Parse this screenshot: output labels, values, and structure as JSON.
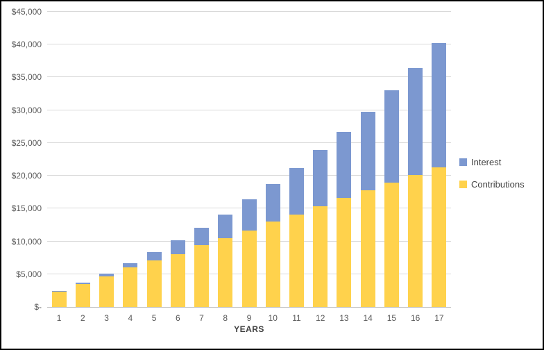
{
  "chart_data": {
    "type": "bar",
    "stacked": true,
    "title": "",
    "xlabel": "YEARS",
    "ylabel": "",
    "categories": [
      "1",
      "2",
      "3",
      "4",
      "5",
      "6",
      "7",
      "8",
      "9",
      "10",
      "11",
      "12",
      "13",
      "14",
      "15",
      "16",
      "17"
    ],
    "series": [
      {
        "name": "Contributions",
        "color": "#ffd24c",
        "values": [
          2300,
          3500,
          4700,
          6000,
          7100,
          8100,
          9400,
          10500,
          11700,
          13000,
          14100,
          15400,
          16600,
          17800,
          19000,
          20100,
          21300
        ]
      },
      {
        "name": "Interest",
        "color": "#7c98d0",
        "values": [
          100,
          200,
          400,
          700,
          1300,
          2100,
          2700,
          3600,
          4700,
          5700,
          7100,
          8500,
          10100,
          12000,
          14000,
          16300,
          18900
        ]
      }
    ],
    "legend": [
      {
        "label": "Interest",
        "color": "#7c98d0"
      },
      {
        "label": "Contributions",
        "color": "#ffd24c"
      }
    ],
    "legend_position": "right",
    "grid": true,
    "ylim": [
      0,
      45000
    ],
    "ytick_step": 5000,
    "ytick_labels": [
      "$-",
      "$5,000",
      "$10,000",
      "$15,000",
      "$20,000",
      "$25,000",
      "$30,000",
      "$35,000",
      "$40,000",
      "$45,000"
    ]
  },
  "colors": {
    "gridline": "#d9d9d9",
    "axis_line": "#bfbfbf",
    "tick_text": "#595959",
    "axis_title_text": "#404040",
    "background": "#ffffff",
    "frame_border": "#000000"
  }
}
